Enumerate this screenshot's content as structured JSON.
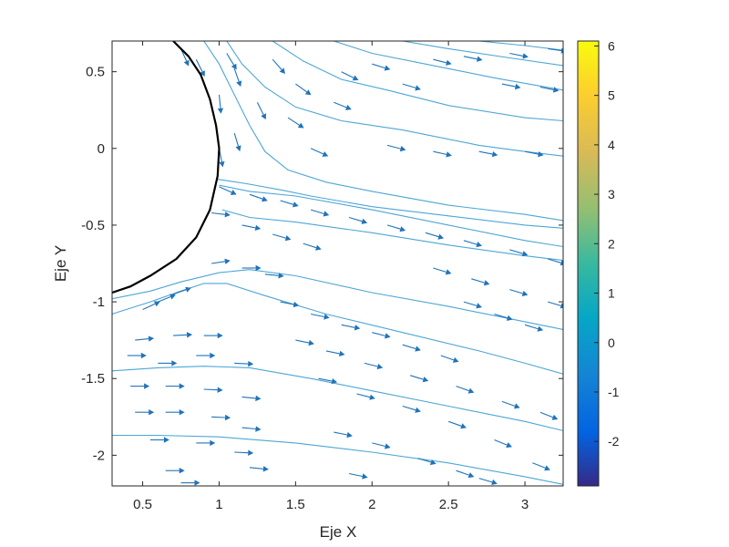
{
  "chart_data": {
    "type": "streamline-quiver",
    "xlabel": "Eje X",
    "ylabel": "Eje Y",
    "xlim": [
      0.3,
      3.25
    ],
    "ylim": [
      -2.2,
      0.7
    ],
    "xticks": [
      0.5,
      1,
      1.5,
      2,
      2.5,
      3
    ],
    "xtick_labels": [
      "0.5",
      "1",
      "1.5",
      "2",
      "2.5",
      "3"
    ],
    "yticks": [
      0.5,
      0,
      -0.5,
      -1,
      -1.5,
      -2
    ],
    "ytick_labels": [
      "0.5",
      "0",
      "-0.5",
      "-1",
      "-1.5",
      "-2"
    ],
    "grid": false,
    "colorbar": {
      "limits": [
        -2.9,
        6.1
      ],
      "ticks": [
        6,
        5,
        4,
        3,
        2,
        1,
        0,
        -1,
        -2
      ],
      "tick_labels": [
        "6",
        "5",
        "4",
        "3",
        "2",
        "1",
        "0",
        "-1",
        "-2"
      ],
      "colormap": "parula"
    },
    "body_boundary": {
      "color": "#000000",
      "points": [
        [
          0.7,
          0.7
        ],
        [
          0.8,
          0.6
        ],
        [
          0.88,
          0.48
        ],
        [
          0.94,
          0.32
        ],
        [
          0.98,
          0.15
        ],
        [
          1.0,
          0.0
        ],
        [
          0.99,
          -0.18
        ],
        [
          0.94,
          -0.4
        ],
        [
          0.85,
          -0.58
        ],
        [
          0.72,
          -0.72
        ],
        [
          0.55,
          -0.83
        ],
        [
          0.42,
          -0.9
        ],
        [
          0.3,
          -0.94
        ]
      ]
    },
    "streamline_color": "#4da6d6",
    "streamlines": [
      [
        [
          0.3,
          -1.87
        ],
        [
          0.6,
          -1.87
        ],
        [
          1.0,
          -1.88
        ],
        [
          1.5,
          -1.92
        ],
        [
          2.0,
          -1.98
        ],
        [
          2.5,
          -2.05
        ],
        [
          3.0,
          -2.14
        ],
        [
          3.25,
          -2.19
        ]
      ],
      [
        [
          0.3,
          -1.45
        ],
        [
          0.6,
          -1.43
        ],
        [
          0.9,
          -1.42
        ],
        [
          1.2,
          -1.43
        ],
        [
          1.6,
          -1.5
        ],
        [
          2.0,
          -1.58
        ],
        [
          2.5,
          -1.68
        ],
        [
          3.0,
          -1.78
        ],
        [
          3.25,
          -1.84
        ]
      ],
      [
        [
          0.3,
          -1.08
        ],
        [
          0.55,
          -1.0
        ],
        [
          0.75,
          -0.93
        ],
        [
          0.9,
          -0.88
        ],
        [
          1.05,
          -0.88
        ],
        [
          1.3,
          -0.96
        ],
        [
          1.7,
          -1.08
        ],
        [
          2.2,
          -1.2
        ],
        [
          2.7,
          -1.32
        ],
        [
          3.0,
          -1.4
        ],
        [
          3.25,
          -1.47
        ]
      ],
      [
        [
          0.3,
          -0.98
        ],
        [
          0.55,
          -0.93
        ],
        [
          0.75,
          -0.87
        ],
        [
          1.0,
          -0.81
        ],
        [
          1.2,
          -0.79
        ],
        [
          1.5,
          -0.83
        ],
        [
          2.0,
          -0.94
        ],
        [
          2.5,
          -1.03
        ],
        [
          3.0,
          -1.13
        ],
        [
          3.25,
          -1.18
        ]
      ],
      [
        [
          1.02,
          -0.4
        ],
        [
          1.2,
          -0.45
        ],
        [
          1.5,
          -0.48
        ],
        [
          2.0,
          -0.55
        ],
        [
          2.5,
          -0.63
        ],
        [
          3.0,
          -0.7
        ],
        [
          3.25,
          -0.73
        ]
      ],
      [
        [
          1.0,
          -0.24
        ],
        [
          1.2,
          -0.28
        ],
        [
          1.5,
          -0.31
        ],
        [
          2.0,
          -0.4
        ],
        [
          2.5,
          -0.5
        ],
        [
          3.0,
          -0.6
        ],
        [
          3.25,
          -0.64
        ]
      ],
      [
        [
          0.98,
          -0.2
        ],
        [
          1.18,
          -0.23
        ],
        [
          1.4,
          -0.27
        ],
        [
          1.6,
          -0.31
        ],
        [
          2.0,
          -0.38
        ],
        [
          2.5,
          -0.44
        ],
        [
          3.0,
          -0.5
        ],
        [
          3.25,
          -0.52
        ]
      ],
      [
        [
          0.9,
          0.7
        ],
        [
          1.0,
          0.55
        ],
        [
          1.1,
          0.35
        ],
        [
          1.2,
          0.15
        ],
        [
          1.3,
          -0.02
        ],
        [
          1.45,
          -0.14
        ],
        [
          1.7,
          -0.22
        ],
        [
          2.0,
          -0.28
        ],
        [
          2.5,
          -0.37
        ],
        [
          3.0,
          -0.43
        ],
        [
          3.25,
          -0.47
        ]
      ],
      [
        [
          1.05,
          0.7
        ],
        [
          1.15,
          0.55
        ],
        [
          1.3,
          0.4
        ],
        [
          1.5,
          0.27
        ],
        [
          1.8,
          0.18
        ],
        [
          2.2,
          0.12
        ],
        [
          2.7,
          0.02
        ],
        [
          3.0,
          -0.02
        ],
        [
          3.25,
          -0.05
        ]
      ],
      [
        [
          1.35,
          0.7
        ],
        [
          1.55,
          0.57
        ],
        [
          1.8,
          0.45
        ],
        [
          2.1,
          0.38
        ],
        [
          2.5,
          0.28
        ],
        [
          3.0,
          0.2
        ],
        [
          3.25,
          0.18
        ]
      ],
      [
        [
          1.75,
          0.7
        ],
        [
          2.0,
          0.62
        ],
        [
          2.4,
          0.54
        ],
        [
          2.8,
          0.46
        ],
        [
          3.25,
          0.38
        ]
      ],
      [
        [
          2.2,
          0.7
        ],
        [
          2.5,
          0.65
        ],
        [
          2.9,
          0.59
        ],
        [
          3.25,
          0.54
        ]
      ],
      [
        [
          2.7,
          0.7
        ],
        [
          3.0,
          0.67
        ],
        [
          3.25,
          0.64
        ]
      ]
    ],
    "quiver_color": "#2073b8",
    "quiver": [
      [
        0.5,
        -1.05,
        1.0,
        0.45
      ],
      [
        0.6,
        -1.0,
        1.0,
        0.4
      ],
      [
        0.7,
        -0.95,
        1.0,
        0.35
      ],
      [
        0.95,
        -0.75,
        1.0,
        0.15
      ],
      [
        1.15,
        -0.78,
        1.0,
        0.0
      ],
      [
        1.3,
        -0.82,
        1.0,
        -0.1
      ],
      [
        0.95,
        -0.42,
        1.0,
        -0.12
      ],
      [
        1.15,
        -0.5,
        1.0,
        -0.2
      ],
      [
        1.35,
        -0.56,
        1.0,
        -0.28
      ],
      [
        1.55,
        -0.62,
        1.0,
        -0.32
      ],
      [
        1.0,
        -0.25,
        0.9,
        -0.4
      ],
      [
        1.2,
        -0.3,
        1.0,
        -0.35
      ],
      [
        1.4,
        -0.34,
        1.0,
        -0.3
      ],
      [
        1.6,
        -0.4,
        1.0,
        -0.3
      ],
      [
        1.85,
        -0.45,
        1.0,
        -0.3
      ],
      [
        2.1,
        -0.5,
        1.0,
        -0.3
      ],
      [
        2.35,
        -0.55,
        1.0,
        -0.3
      ],
      [
        2.6,
        -0.6,
        1.0,
        -0.3
      ],
      [
        2.9,
        -0.66,
        1.0,
        -0.3
      ],
      [
        3.15,
        -0.72,
        1.0,
        -0.3
      ],
      [
        1.0,
        0.0,
        0.2,
        -1.0
      ],
      [
        1.1,
        0.1,
        0.3,
        -1.0
      ],
      [
        1.0,
        0.35,
        0.1,
        -1.0
      ],
      [
        1.1,
        0.52,
        0.35,
        -1.0
      ],
      [
        1.25,
        0.3,
        0.5,
        -1.0
      ],
      [
        0.75,
        0.65,
        0.45,
        -1.0
      ],
      [
        0.85,
        0.58,
        0.5,
        -1.0
      ],
      [
        1.05,
        0.62,
        0.6,
        -1.0
      ],
      [
        1.35,
        0.58,
        0.7,
        -0.8
      ],
      [
        1.5,
        0.42,
        0.85,
        -0.6
      ],
      [
        1.45,
        0.2,
        0.85,
        -0.55
      ],
      [
        1.6,
        0.0,
        1.0,
        -0.45
      ],
      [
        1.75,
        0.3,
        1.0,
        -0.4
      ],
      [
        1.8,
        0.5,
        0.9,
        -0.45
      ],
      [
        2.0,
        0.55,
        1.0,
        -0.3
      ],
      [
        2.2,
        0.42,
        1.0,
        -0.3
      ],
      [
        2.4,
        0.58,
        1.0,
        -0.25
      ],
      [
        2.6,
        0.6,
        1.0,
        -0.2
      ],
      [
        2.1,
        0.02,
        1.0,
        -0.25
      ],
      [
        2.4,
        -0.02,
        1.0,
        -0.22
      ],
      [
        2.7,
        -0.02,
        1.0,
        -0.2
      ],
      [
        3.0,
        -0.02,
        1.0,
        -0.2
      ],
      [
        2.85,
        0.42,
        1.0,
        -0.2
      ],
      [
        3.1,
        0.4,
        1.0,
        -0.2
      ],
      [
        2.9,
        0.62,
        1.0,
        -0.2
      ],
      [
        3.15,
        0.65,
        1.0,
        -0.15
      ],
      [
        0.45,
        -1.25,
        1.0,
        0.1
      ],
      [
        0.7,
        -1.22,
        1.0,
        0.05
      ],
      [
        0.9,
        -1.22,
        1.0,
        0.0
      ],
      [
        0.4,
        -1.35,
        1.0,
        0.0
      ],
      [
        0.6,
        -1.4,
        1.0,
        0.0
      ],
      [
        0.85,
        -1.35,
        1.0,
        0.0
      ],
      [
        1.1,
        -1.4,
        1.0,
        -0.05
      ],
      [
        0.42,
        -1.55,
        1.0,
        0.0
      ],
      [
        0.65,
        -1.55,
        1.0,
        0.0
      ],
      [
        0.9,
        -1.57,
        1.0,
        -0.05
      ],
      [
        1.15,
        -1.62,
        1.0,
        -0.1
      ],
      [
        0.45,
        -1.72,
        1.0,
        0.0
      ],
      [
        0.65,
        -1.72,
        1.0,
        0.0
      ],
      [
        0.95,
        -1.75,
        1.0,
        -0.05
      ],
      [
        1.15,
        -1.82,
        1.0,
        -0.1
      ],
      [
        0.55,
        -1.9,
        1.0,
        0.0
      ],
      [
        0.85,
        -1.92,
        1.0,
        0.0
      ],
      [
        1.1,
        -1.98,
        1.0,
        -0.05
      ],
      [
        1.2,
        -2.08,
        1.0,
        -0.1
      ],
      [
        0.65,
        -2.1,
        1.0,
        0.0
      ],
      [
        0.75,
        -2.18,
        1.0,
        0.0
      ],
      [
        1.4,
        -1.0,
        1.0,
        -0.2
      ],
      [
        1.6,
        -1.08,
        1.0,
        -0.2
      ],
      [
        1.8,
        -1.15,
        1.0,
        -0.2
      ],
      [
        2.0,
        -1.2,
        1.0,
        -0.25
      ],
      [
        2.2,
        -1.28,
        1.0,
        -0.3
      ],
      [
        2.45,
        -1.35,
        1.0,
        -0.35
      ],
      [
        1.5,
        -1.25,
        1.0,
        -0.2
      ],
      [
        1.7,
        -1.32,
        1.0,
        -0.2
      ],
      [
        1.95,
        -1.4,
        1.0,
        -0.25
      ],
      [
        2.25,
        -1.48,
        1.0,
        -0.3
      ],
      [
        2.55,
        -1.55,
        1.0,
        -0.35
      ],
      [
        2.85,
        -1.65,
        1.0,
        -0.35
      ],
      [
        3.1,
        -1.72,
        1.0,
        -0.4
      ],
      [
        1.65,
        -1.5,
        1.0,
        -0.2
      ],
      [
        1.9,
        -1.6,
        1.0,
        -0.25
      ],
      [
        2.2,
        -1.68,
        1.0,
        -0.3
      ],
      [
        2.5,
        -1.78,
        1.0,
        -0.35
      ],
      [
        2.8,
        -1.9,
        1.0,
        -0.4
      ],
      [
        3.05,
        -2.05,
        1.0,
        -0.4
      ],
      [
        1.75,
        -1.85,
        1.0,
        -0.2
      ],
      [
        2.0,
        -1.92,
        1.0,
        -0.25
      ],
      [
        2.3,
        -2.02,
        1.0,
        -0.3
      ],
      [
        2.55,
        -2.1,
        1.0,
        -0.35
      ],
      [
        1.85,
        -2.12,
        1.0,
        -0.2
      ],
      [
        2.7,
        -2.15,
        1.0,
        -0.3
      ],
      [
        2.6,
        -1.0,
        1.0,
        -0.3
      ],
      [
        2.8,
        -1.08,
        1.0,
        -0.3
      ],
      [
        3.0,
        -1.15,
        1.0,
        -0.3
      ],
      [
        2.4,
        -0.78,
        1.0,
        -0.3
      ],
      [
        2.65,
        -0.85,
        1.0,
        -0.3
      ],
      [
        2.9,
        -0.92,
        1.0,
        -0.3
      ],
      [
        3.15,
        -1.0,
        1.0,
        -0.3
      ]
    ]
  }
}
